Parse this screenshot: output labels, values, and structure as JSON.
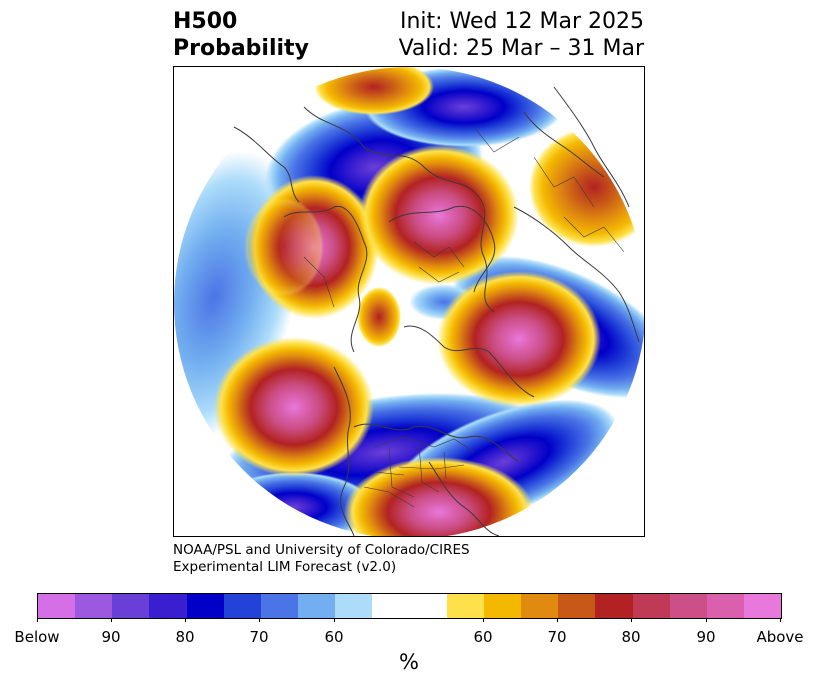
{
  "header": {
    "left_line1": "H500",
    "left_line2": "Probability",
    "right_line1": "Init: Wed 12 Mar 2025",
    "right_line2": "Valid: 25 Mar – 31 Mar"
  },
  "credit": {
    "line1": "NOAA/PSL and University of Colorado/CIRES",
    "line2": "Experimental LIM Forecast (v2.0)"
  },
  "colorbar": {
    "colors": [
      "#d56fe8",
      "#9d58e0",
      "#6a3fd8",
      "#3a1fd0",
      "#0000c8",
      "#2242d8",
      "#4b74e6",
      "#72aef0",
      "#acdcfa",
      "#ffffff",
      "#ffffff",
      "#fee14a",
      "#f4b800",
      "#e08a10",
      "#c85818",
      "#b22222",
      "#c03a55",
      "#cc4f88",
      "#da60ad",
      "#e878dc"
    ],
    "tick_labels": [
      "Below",
      "90",
      "80",
      "70",
      "60",
      "60",
      "70",
      "80",
      "90",
      "Above"
    ],
    "unit_label": "%"
  },
  "map": {
    "projection": "north-polar-stereographic",
    "field": "500-hPa height anomaly probability",
    "features": [
      "coastlines",
      "country-borders",
      "us-state-borders"
    ]
  }
}
